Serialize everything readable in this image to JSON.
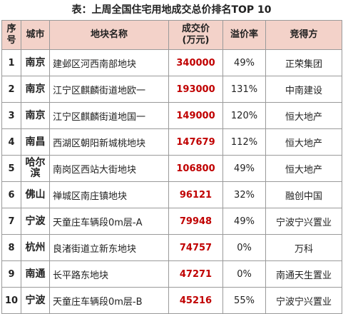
{
  "title": "表：上周全国住宅用地成交总价排名TOP 10",
  "accent_color": "#c00000",
  "header_bg": "#f3d2c9",
  "headers": {
    "rank": "序号",
    "city": "城市",
    "name": "地块名称",
    "price_line1": "成交价",
    "price_line2": "(万元)",
    "premium": "溢价率",
    "winner": "竞得方"
  },
  "rows": [
    {
      "rank": "1",
      "city": "南京",
      "name": "建邺区河西南部地块",
      "price": "340000",
      "premium": "49%",
      "winner": "正荣集团"
    },
    {
      "rank": "2",
      "city": "南京",
      "name": "江宁区麒麟街道地欧一",
      "price": "193000",
      "premium": "131%",
      "winner": "中南建设"
    },
    {
      "rank": "3",
      "city": "南京",
      "name": "江宁区麒麟街道地国一",
      "price": "149000",
      "premium": "120%",
      "winner": "恒大地产"
    },
    {
      "rank": "4",
      "city": "南昌",
      "name": "西湖区朝阳新城桃地块",
      "price": "147679",
      "premium": "112%",
      "winner": "恒大地产"
    },
    {
      "rank": "5",
      "city": "哈尔滨",
      "name": "南岗区西站大街地块",
      "price": "106800",
      "premium": "49%",
      "winner": "恒大地产"
    },
    {
      "rank": "6",
      "city": "佛山",
      "name": "禅城区南庄镇地块",
      "price": "96121",
      "premium": "32%",
      "winner": "融创中国"
    },
    {
      "rank": "7",
      "city": "宁波",
      "name": "天童庄车辆段0m层-A",
      "price": "79948",
      "premium": "49%",
      "winner": "宁波宁兴置业"
    },
    {
      "rank": "8",
      "city": "杭州",
      "name": "良渚街道立新东地块",
      "price": "74757",
      "premium": "0%",
      "winner": "万科"
    },
    {
      "rank": "9",
      "city": "南通",
      "name": "长平路东地块",
      "price": "47271",
      "premium": "0%",
      "winner": "南通天生置业"
    },
    {
      "rank": "10",
      "city": "宁波",
      "name": "天童庄车辆段0m层-B",
      "price": "45216",
      "premium": "55%",
      "winner": "宁波宁兴置业"
    }
  ]
}
